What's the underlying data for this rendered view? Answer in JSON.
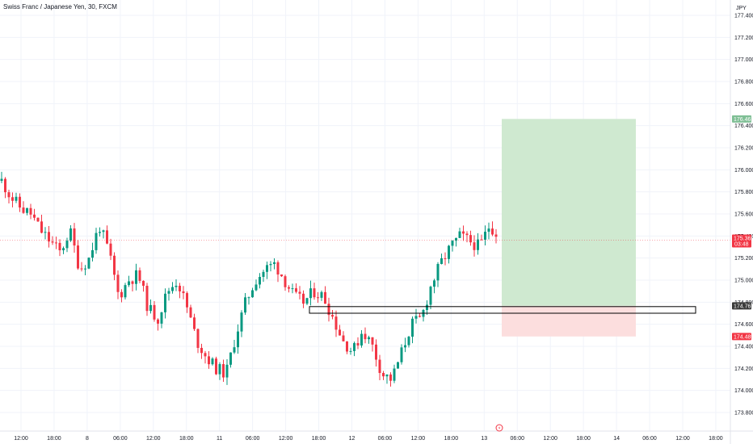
{
  "header": {
    "title": "Swiss Franc / Japanese Yen, 30, FXCM"
  },
  "currency_label": "JPY",
  "colors": {
    "up": "#089981",
    "down": "#f23645",
    "profit_zone": "#cfe9d0",
    "loss_zone": "#fcdede",
    "current_price_tag": "#f23645",
    "target_price_tag": "#7fbf95",
    "stop_price_tag": "#f23645",
    "entry_price_tag": "#3b3b3b",
    "grid": "#f0f3fa",
    "axis": "#e0e3eb"
  },
  "chart_data": {
    "type": "candlestick",
    "y_axis": {
      "min": 173.8,
      "max": 177.4,
      "ticks": [
        "177.400",
        "177.200",
        "177.000",
        "176.800",
        "176.600",
        "176.400",
        "176.200",
        "176.000",
        "175.800",
        "175.600",
        "175.400",
        "175.200",
        "175.000",
        "174.800",
        "174.600",
        "174.400",
        "174.200",
        "174.000",
        "173.800"
      ]
    },
    "x_axis_labels": [
      "12:00",
      "18:00",
      "8",
      "06:00",
      "12:00",
      "18:00",
      "11",
      "06:00",
      "12:00",
      "18:00",
      "12",
      "06:00",
      "12:00",
      "18:00",
      "13",
      "06:00",
      "12:00",
      "18:00",
      "14",
      "06:00",
      "12:00",
      "18:00"
    ],
    "close_path": [
      175.9,
      175.75,
      175.65,
      175.6,
      175.45,
      175.35,
      175.25,
      175.45,
      175.1,
      175.2,
      175.5,
      175.25,
      174.85,
      175.0,
      175.05,
      174.75,
      174.65,
      174.9,
      175.0,
      174.75,
      174.45,
      174.3,
      174.2,
      174.15,
      174.5,
      174.8,
      175.0,
      175.1,
      175.15,
      175.0,
      174.85,
      174.8,
      174.9,
      174.85,
      174.65,
      174.45,
      174.35,
      174.55,
      174.4,
      174.15,
      174.1,
      174.35,
      174.6,
      174.65,
      174.95,
      175.15,
      175.3,
      175.4,
      175.35,
      175.3,
      175.5,
      175.4
    ],
    "position": {
      "type": "long",
      "target": 176.461,
      "entry": 174.767,
      "stop": 174.489
    },
    "zone_box": {
      "top": 174.76,
      "bottom": 174.7
    },
    "current_price": "175.362",
    "countdown": "03:48",
    "target_label": "176.461",
    "entry_label": "174.767",
    "stop_label": "174.489"
  }
}
